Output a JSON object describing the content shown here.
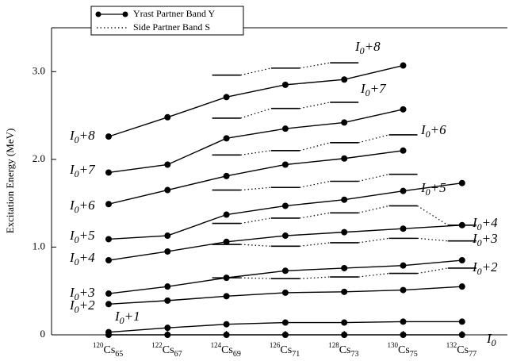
{
  "chart_data": {
    "type": "level-scheme",
    "y_label": "Excitation Energy (MeV)",
    "ylim": [
      0,
      3.5
    ],
    "yticks": [
      0,
      {
        "value": 1,
        "label": "1.0"
      },
      {
        "value": 2,
        "label": "2.0"
      },
      {
        "value": 3,
        "label": "3.0"
      }
    ],
    "categories": [
      {
        "mass": "120",
        "symbol": "Cs",
        "n": "65"
      },
      {
        "mass": "122",
        "symbol": "Cs",
        "n": "67"
      },
      {
        "mass": "124",
        "symbol": "Cs",
        "n": "69"
      },
      {
        "mass": "126",
        "symbol": "Cs",
        "n": "71"
      },
      {
        "mass": "128",
        "symbol": "Cs",
        "n": "73"
      },
      {
        "mass": "130",
        "symbol": "Cs",
        "n": "75"
      },
      {
        "mass": "132",
        "symbol": "Cs",
        "n": "77"
      }
    ],
    "series": [
      {
        "name": "Yrast Partner Band Y",
        "style": "solid",
        "color": "#000000",
        "levels": [
          {
            "label": {
              "base": "I",
              "sub": "0",
              "rest": ""
            },
            "values": [
              0,
              0,
              0,
              0,
              0,
              0,
              0
            ]
          },
          {
            "label": {
              "base": "I",
              "sub": "0",
              "rest": "+1"
            },
            "values": [
              0.03,
              0.08,
              0.12,
              0.14,
              0.14,
              0.15,
              0.15
            ]
          },
          {
            "label": {
              "base": "I",
              "sub": "0",
              "rest": "+2"
            },
            "values": [
              0.35,
              0.39,
              0.44,
              0.48,
              0.49,
              0.51,
              0.55
            ]
          },
          {
            "label": {
              "base": "I",
              "sub": "0",
              "rest": "+3"
            },
            "values": [
              0.47,
              0.55,
              0.65,
              0.73,
              0.76,
              0.79,
              0.85
            ]
          },
          {
            "label": {
              "base": "I",
              "sub": "0",
              "rest": "+4"
            },
            "values": [
              0.85,
              0.95,
              1.06,
              1.13,
              1.17,
              1.21,
              1.25
            ]
          },
          {
            "label": {
              "base": "I",
              "sub": "0",
              "rest": "+5"
            },
            "values": [
              1.09,
              1.13,
              1.37,
              1.47,
              1.54,
              1.64,
              1.73
            ]
          },
          {
            "label": {
              "base": "I",
              "sub": "0",
              "rest": "+6"
            },
            "values": [
              1.49,
              1.65,
              1.81,
              1.94,
              2.01,
              2.1,
              null
            ]
          },
          {
            "label": {
              "base": "I",
              "sub": "0",
              "rest": "+7"
            },
            "values": [
              1.85,
              1.94,
              2.24,
              2.35,
              2.42,
              2.57,
              null
            ]
          },
          {
            "label": {
              "base": "I",
              "sub": "0",
              "rest": "+8"
            },
            "values": [
              2.26,
              2.48,
              2.71,
              2.85,
              2.91,
              3.07,
              null
            ]
          }
        ]
      },
      {
        "name": "Side Partner Band S",
        "style": "dotted",
        "color": "#000000",
        "levels": [
          {
            "values": [
              null,
              null,
              0.65,
              0.64,
              0.66,
              0.7,
              0.76
            ]
          },
          {
            "values": [
              null,
              null,
              1.03,
              1.01,
              1.05,
              1.1,
              1.07
            ]
          },
          {
            "values": [
              null,
              null,
              1.27,
              1.33,
              1.39,
              1.47,
              1.25
            ]
          },
          {
            "values": [
              null,
              null,
              1.65,
              1.68,
              1.75,
              1.83,
              null
            ]
          },
          {
            "values": [
              null,
              null,
              2.05,
              2.1,
              2.19,
              2.28,
              null
            ]
          },
          {
            "values": [
              null,
              null,
              2.47,
              2.58,
              2.65,
              null,
              null
            ]
          },
          {
            "values": [
              null,
              null,
              2.96,
              3.04,
              3.1,
              null,
              null
            ]
          }
        ]
      }
    ]
  }
}
